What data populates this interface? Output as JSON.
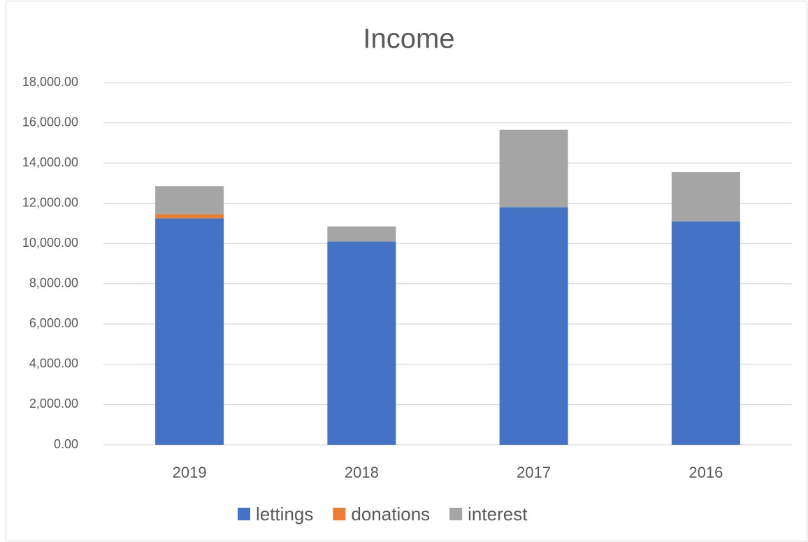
{
  "chart_data": {
    "type": "stacked_bar",
    "title": "Income",
    "categories": [
      "2019",
      "2018",
      "2017",
      "2016"
    ],
    "series": [
      {
        "name": "lettings",
        "color": "#4472c4",
        "values": [
          11250,
          10100,
          11800,
          11100
        ]
      },
      {
        "name": "donations",
        "color": "#ed7d31",
        "values": [
          200,
          0,
          0,
          0
        ]
      },
      {
        "name": "interest",
        "color": "#a5a5a5",
        "values": [
          1400,
          750,
          3850,
          2450
        ]
      }
    ],
    "ylim": [
      0,
      18000
    ],
    "yticks": [
      {
        "value": 0,
        "label": "0.00"
      },
      {
        "value": 2000,
        "label": "2,000.00"
      },
      {
        "value": 4000,
        "label": "4,000.00"
      },
      {
        "value": 6000,
        "label": "6,000.00"
      },
      {
        "value": 8000,
        "label": "8,000.00"
      },
      {
        "value": 10000,
        "label": "10,000.00"
      },
      {
        "value": 12000,
        "label": "12,000.00"
      },
      {
        "value": 14000,
        "label": "14,000.00"
      },
      {
        "value": 16000,
        "label": "16,000.00"
      },
      {
        "value": 18000,
        "label": "18,000.00"
      }
    ],
    "grid": true,
    "legend": "bottom"
  }
}
